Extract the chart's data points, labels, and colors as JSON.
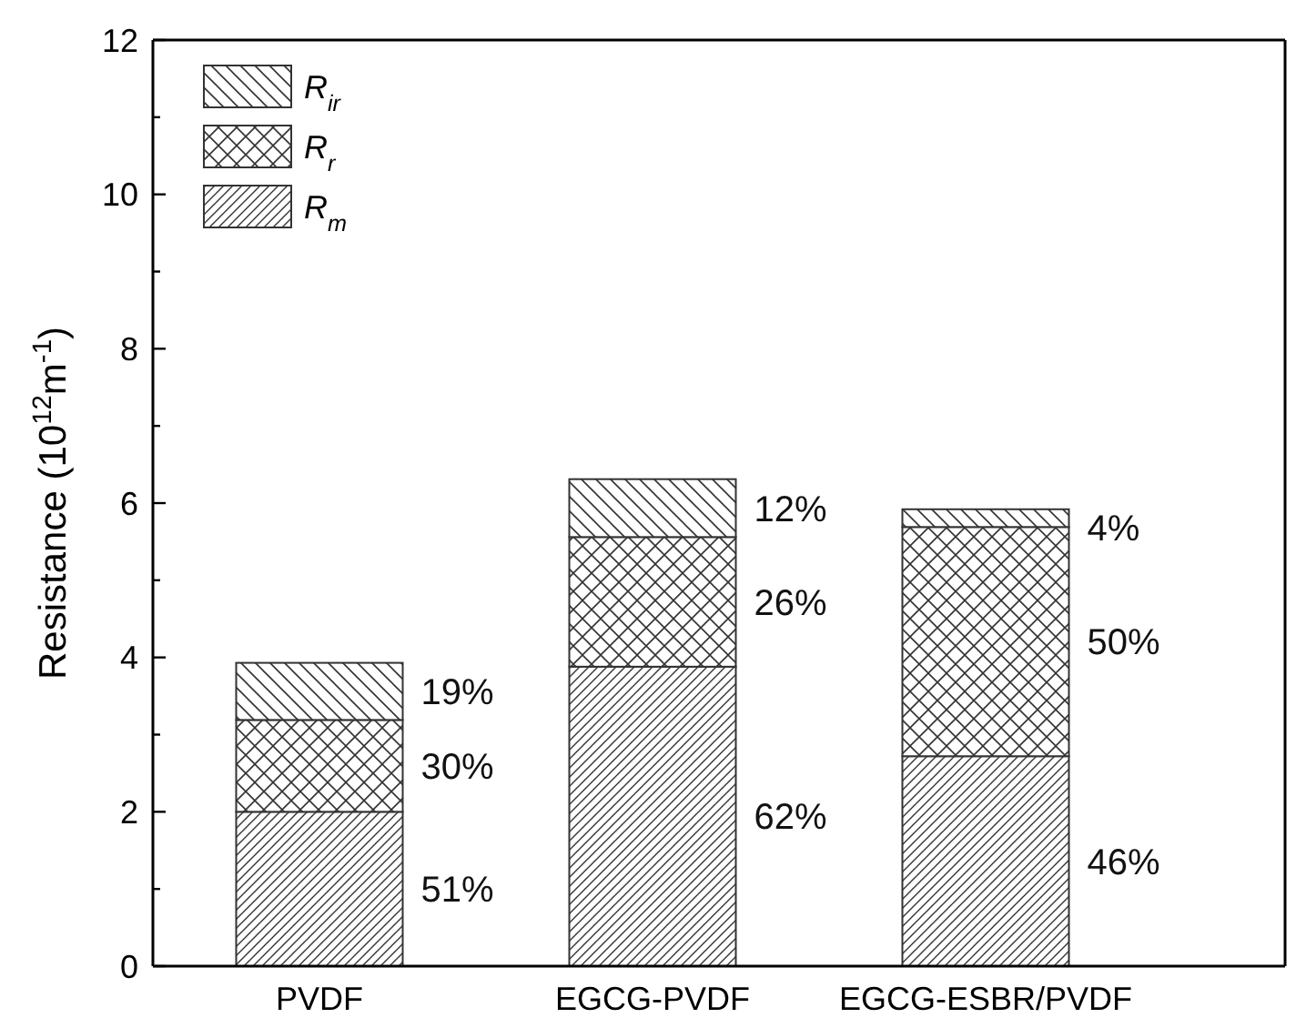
{
  "chart_data": {
    "type": "bar",
    "stacked": true,
    "ylabel": "Resistance (10$^{12}$m$^{-1}$)",
    "categories": [
      "PVDF",
      "EGCG-PVDF",
      "EGCG-ESBR/PVDF"
    ],
    "series": [
      {
        "name": "R$_{m}$",
        "color": "#333333",
        "values": [
          2.0,
          3.88,
          2.72
        ]
      },
      {
        "name": "R$_{r}$",
        "color": "#333333",
        "values": [
          1.19,
          1.68,
          2.97
        ]
      },
      {
        "name": "R$_{ir}$",
        "color": "#333333",
        "values": [
          0.74,
          0.75,
          0.23
        ]
      }
    ],
    "annotations": [
      "51%",
      "30%",
      "19%",
      "62%",
      "26%",
      "12%",
      "46%",
      "50%",
      "4%"
    ],
    "ylim": [
      0,
      12
    ],
    "yticks": [
      0,
      {
        "value": 1,
        "label": null
      },
      2,
      {
        "value": 3,
        "label": null
      },
      4,
      {
        "value": 5,
        "label": null
      },
      6,
      {
        "value": 7,
        "label": null
      },
      8,
      {
        "value": 9,
        "label": null
      },
      10,
      {
        "value": 11,
        "label": null
      },
      12
    ],
    "grid": false,
    "legend": "top left"
  }
}
